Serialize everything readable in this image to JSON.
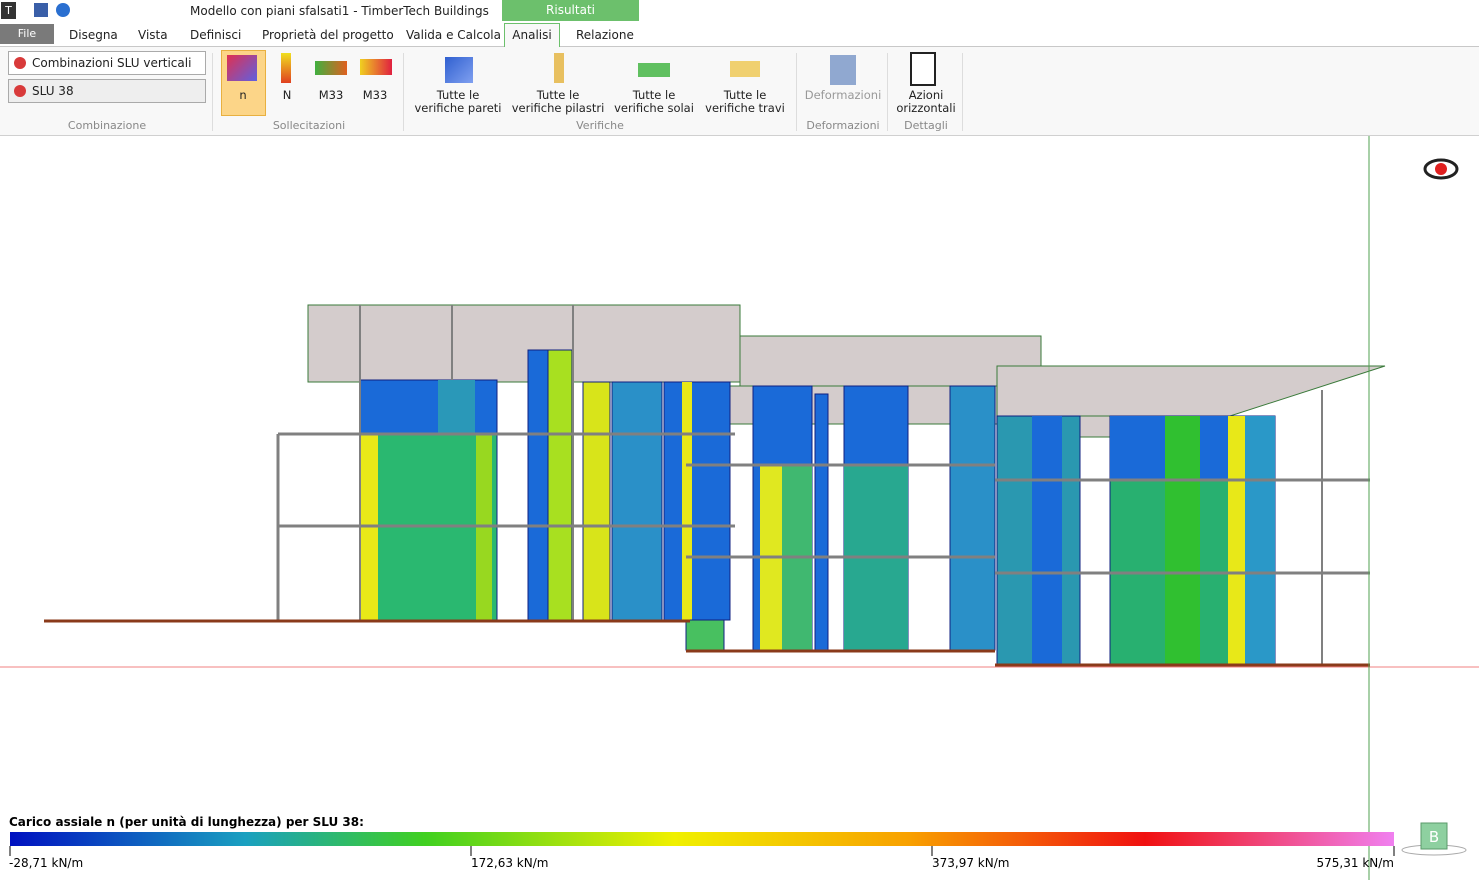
{
  "window": {
    "title": "Modello con piani sfalsati1 - TimberTech Buildings",
    "context_tab": "Risultati"
  },
  "tabs": [
    "File",
    "Disegna",
    "Vista",
    "Definisci",
    "Proprietà del progetto",
    "Valida e Calcola",
    "Analisi",
    "Relazione"
  ],
  "ribbon": {
    "combinazione": {
      "dropdowns": [
        "Combinazioni SLU verticali",
        "SLU 38"
      ],
      "label": "Combinazione"
    },
    "sollecitazioni": {
      "buttons": [
        "n",
        "N",
        "M33",
        "M33"
      ],
      "label": "Sollecitazioni"
    },
    "verifiche": {
      "buttons": [
        [
          "Tutte le",
          "verifiche pareti"
        ],
        [
          "Tutte le",
          "verifiche pilastri"
        ],
        [
          "Tutte le",
          "verifiche solai"
        ],
        [
          "Tutte le",
          "verifiche travi"
        ]
      ],
      "label": "Verifiche"
    },
    "deformazioni": {
      "button": "Deformazioni",
      "label": "Deformazioni"
    },
    "dettagli": {
      "button": [
        "Azioni",
        "orizzontali"
      ],
      "label": "Dettagli"
    }
  },
  "legend": {
    "title": "Carico assiale n (per unità di lunghezza) per SLU 38:",
    "labels": [
      "-28,71 kN/m",
      "172,63 kN/m",
      "373,97 kN/m",
      "575,31 kN/m"
    ],
    "badge": "B"
  }
}
